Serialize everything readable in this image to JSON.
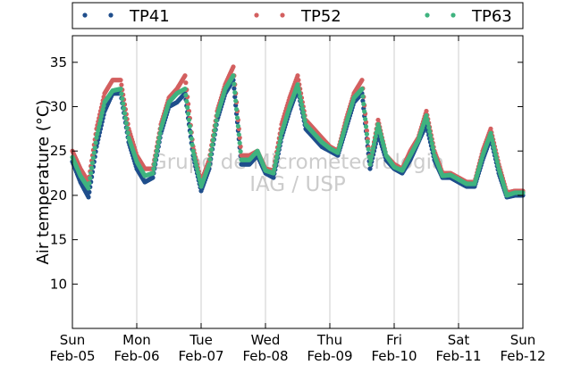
{
  "chart_data": {
    "type": "scatter",
    "title": "",
    "xlabel": "",
    "ylabel": "Air temperature (°C)",
    "ylim": [
      5,
      38
    ],
    "xlim": [
      "2015-02-05 00:00",
      "2015-02-12 00:00"
    ],
    "yticks": [
      10,
      15,
      20,
      25,
      30,
      35
    ],
    "xticks": [
      {
        "day": "Sun",
        "date": "Feb-05"
      },
      {
        "day": "Mon",
        "date": "Feb-06"
      },
      {
        "day": "Tue",
        "date": "Feb-07"
      },
      {
        "day": "Wed",
        "date": "Feb-08"
      },
      {
        "day": "Thu",
        "date": "Feb-09"
      },
      {
        "day": "Fri",
        "date": "Feb-10"
      },
      {
        "day": "Sat",
        "date": "Feb-11"
      },
      {
        "day": "Sun",
        "date": "Feb-12"
      }
    ],
    "grid": "vertical",
    "legend": "top",
    "watermark": [
      "Grupo de Micrometeorologia",
      "IAG / USP"
    ],
    "x": [
      "2015-02-05 00:00",
      "2015-02-05 03:00",
      "2015-02-05 06:00",
      "2015-02-05 09:00",
      "2015-02-05 12:00",
      "2015-02-05 15:00",
      "2015-02-05 18:00",
      "2015-02-05 21:00",
      "2015-02-06 00:00",
      "2015-02-06 03:00",
      "2015-02-06 06:00",
      "2015-02-06 09:00",
      "2015-02-06 12:00",
      "2015-02-06 15:00",
      "2015-02-06 18:00",
      "2015-02-06 21:00",
      "2015-02-07 00:00",
      "2015-02-07 03:00",
      "2015-02-07 06:00",
      "2015-02-07 09:00",
      "2015-02-07 12:00",
      "2015-02-07 15:00",
      "2015-02-07 18:00",
      "2015-02-07 21:00",
      "2015-02-08 00:00",
      "2015-02-08 03:00",
      "2015-02-08 06:00",
      "2015-02-08 09:00",
      "2015-02-08 12:00",
      "2015-02-08 15:00",
      "2015-02-08 18:00",
      "2015-02-08 21:00",
      "2015-02-09 00:00",
      "2015-02-09 03:00",
      "2015-02-09 06:00",
      "2015-02-09 09:00",
      "2015-02-09 12:00",
      "2015-02-09 15:00",
      "2015-02-09 18:00",
      "2015-02-09 21:00",
      "2015-02-10 00:00",
      "2015-02-10 03:00",
      "2015-02-10 06:00",
      "2015-02-10 09:00",
      "2015-02-10 12:00",
      "2015-02-10 15:00",
      "2015-02-10 18:00",
      "2015-02-10 21:00",
      "2015-02-11 00:00",
      "2015-02-11 03:00",
      "2015-02-11 06:00",
      "2015-02-11 09:00",
      "2015-02-11 12:00",
      "2015-02-11 15:00",
      "2015-02-11 18:00",
      "2015-02-11 21:00",
      "2015-02-12 00:00"
    ],
    "series": [
      {
        "name": "TP41",
        "color": "#1f4e8c",
        "values": [
          23.8,
          21.5,
          19.8,
          25.5,
          29.5,
          31.5,
          31.5,
          26.0,
          23.0,
          21.5,
          22.0,
          27.0,
          30.0,
          30.5,
          31.5,
          24.5,
          20.5,
          23.0,
          28.5,
          31.5,
          33.0,
          23.5,
          23.5,
          24.5,
          22.5,
          22.0,
          26.5,
          29.5,
          32.0,
          27.5,
          26.5,
          25.5,
          25.0,
          24.5,
          27.5,
          30.5,
          31.5,
          23.0,
          27.0,
          24.0,
          23.0,
          22.5,
          24.0,
          26.0,
          28.0,
          24.0,
          22.0,
          22.0,
          21.5,
          21.0,
          21.0,
          24.0,
          26.5,
          22.5,
          19.8,
          20.0,
          20.0
        ]
      },
      {
        "name": "TP52",
        "color": "#d35f5f",
        "values": [
          25.0,
          23.0,
          21.5,
          27.5,
          31.5,
          33.0,
          33.0,
          27.5,
          24.5,
          23.0,
          23.0,
          28.0,
          31.0,
          32.0,
          33.5,
          25.5,
          21.5,
          24.0,
          29.5,
          32.5,
          34.5,
          24.5,
          24.5,
          25.0,
          23.0,
          22.8,
          28.0,
          31.0,
          33.5,
          28.5,
          27.5,
          26.5,
          25.5,
          25.0,
          28.5,
          31.5,
          33.0,
          23.5,
          28.5,
          24.5,
          23.5,
          23.0,
          25.0,
          26.5,
          29.5,
          25.0,
          22.5,
          22.5,
          22.0,
          21.5,
          21.5,
          25.0,
          27.5,
          23.5,
          20.3,
          20.5,
          20.5
        ]
      },
      {
        "name": "TP63",
        "color": "#3fb37f",
        "values": [
          24.3,
          22.2,
          20.8,
          26.5,
          30.5,
          31.8,
          32.0,
          26.5,
          23.8,
          22.2,
          22.5,
          27.5,
          30.5,
          31.5,
          32.0,
          25.0,
          21.0,
          23.5,
          29.0,
          32.0,
          33.5,
          24.0,
          24.0,
          25.0,
          22.8,
          22.5,
          27.0,
          30.0,
          32.5,
          28.0,
          27.0,
          26.0,
          25.3,
          24.8,
          28.0,
          31.0,
          32.0,
          23.5,
          28.0,
          24.5,
          23.2,
          22.8,
          24.5,
          26.2,
          29.0,
          24.5,
          22.2,
          22.3,
          21.8,
          21.3,
          21.3,
          24.5,
          27.0,
          23.0,
          20.0,
          20.3,
          20.3
        ]
      }
    ]
  }
}
